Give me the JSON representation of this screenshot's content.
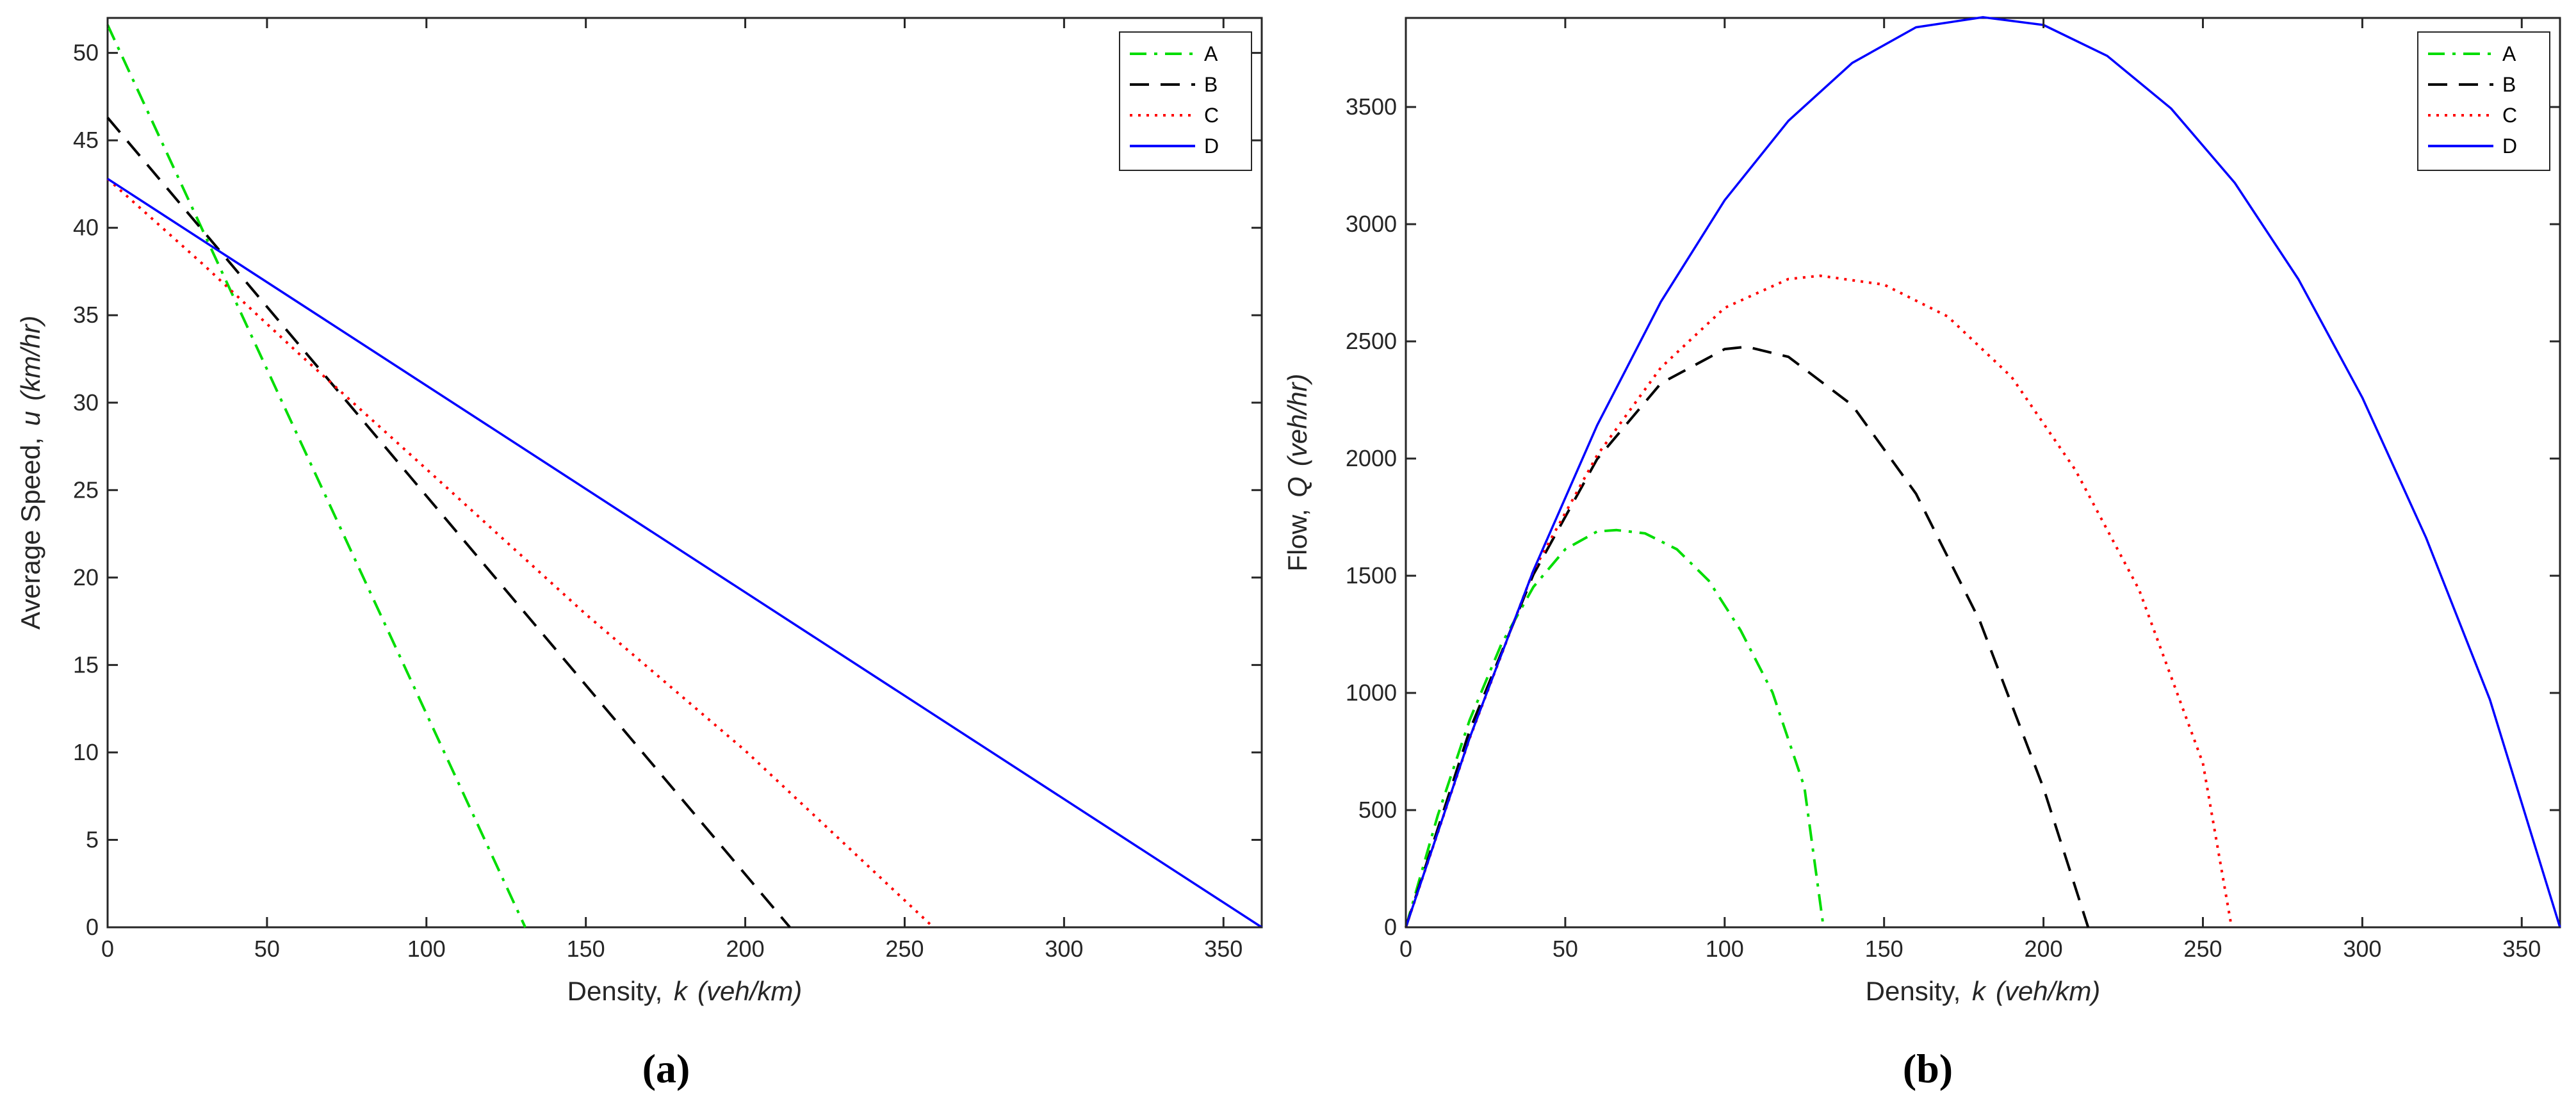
{
  "chart_data": [
    {
      "type": "line",
      "panel_label": "(a)",
      "xlabel_prefix": "Density, ",
      "xlabel_var": "k",
      "xlabel_unit": "(veh/km)",
      "ylabel_prefix": "Average Speed, ",
      "ylabel_var": "u",
      "ylabel_unit": "(km/hr)",
      "xlim": [
        0,
        362
      ],
      "ylim": [
        0,
        52
      ],
      "xticks": [
        0,
        50,
        100,
        150,
        200,
        250,
        300,
        350
      ],
      "yticks": [
        0,
        5,
        10,
        15,
        20,
        25,
        30,
        35,
        40,
        45,
        50
      ],
      "grid": false,
      "legend_position": "top-right",
      "series": [
        {
          "name": "A",
          "color": "#00dd00",
          "dash": "dashdot",
          "x": [
            0,
            131
          ],
          "y": [
            51.6,
            0
          ]
        },
        {
          "name": "B",
          "color": "#000000",
          "dash": "dashed",
          "x": [
            0,
            214
          ],
          "y": [
            46.3,
            0
          ]
        },
        {
          "name": "C",
          "color": "#ff0000",
          "dash": "dotted",
          "x": [
            0,
            30,
            60,
            100,
            150,
            200,
            259
          ],
          "y": [
            42.8,
            37.9,
            32.8,
            26.2,
            17.9,
            10.1,
            0
          ]
        },
        {
          "name": "D",
          "color": "#0000ff",
          "dash": "solid",
          "x": [
            0,
            362
          ],
          "y": [
            42.8,
            0
          ]
        }
      ]
    },
    {
      "type": "line",
      "panel_label": "(b)",
      "xlabel_prefix": "Density, ",
      "xlabel_var": "k",
      "xlabel_unit": "(veh/km)",
      "ylabel_prefix": "Flow, ",
      "ylabel_var": "Q",
      "ylabel_unit": "(veh/hr)",
      "xlim": [
        0,
        362
      ],
      "ylim": [
        0,
        3880
      ],
      "xticks": [
        0,
        50,
        100,
        150,
        200,
        250,
        300,
        350
      ],
      "yticks": [
        0,
        500,
        1000,
        1500,
        2000,
        2500,
        3000,
        3500
      ],
      "grid": false,
      "legend_position": "top-right",
      "series": [
        {
          "name": "A",
          "color": "#00dd00",
          "dash": "dashdot",
          "x": [
            0,
            10,
            20,
            30,
            40,
            50,
            60,
            66,
            75,
            85,
            95,
            105,
            115,
            125,
            131
          ],
          "y": [
            0,
            477,
            884,
            1209,
            1452,
            1613,
            1689,
            1695,
            1681,
            1613,
            1479,
            1267,
            1002,
            599,
            0
          ]
        },
        {
          "name": "B",
          "color": "#000000",
          "dash": "dashed",
          "x": [
            0,
            20,
            40,
            60,
            80,
            100,
            107,
            120,
            140,
            160,
            180,
            200,
            214
          ],
          "y": [
            0,
            840,
            1505,
            1998,
            2321,
            2467,
            2477,
            2434,
            2228,
            1850,
            1308,
            594,
            0
          ]
        },
        {
          "name": "C",
          "color": "#ff0000",
          "dash": "dotted",
          "x": [
            0,
            20,
            40,
            60,
            80,
            100,
            120,
            130,
            150,
            170,
            190,
            210,
            230,
            250,
            259
          ],
          "y": [
            0,
            806,
            1521,
            2014,
            2388,
            2643,
            2766,
            2780,
            2742,
            2606,
            2348,
            1951,
            1440,
            700,
            0
          ]
        },
        {
          "name": "D",
          "color": "#0000ff",
          "dash": "solid",
          "x": [
            0,
            20,
            40,
            60,
            80,
            100,
            120,
            140,
            160,
            181,
            200,
            220,
            240,
            260,
            280,
            300,
            320,
            340,
            362
          ],
          "y": [
            0,
            808,
            1522,
            2142,
            2669,
            3102,
            3441,
            3688,
            3840,
            3883,
            3850,
            3718,
            3494,
            3176,
            2764,
            2260,
            1662,
            972,
            0
          ]
        }
      ]
    }
  ]
}
